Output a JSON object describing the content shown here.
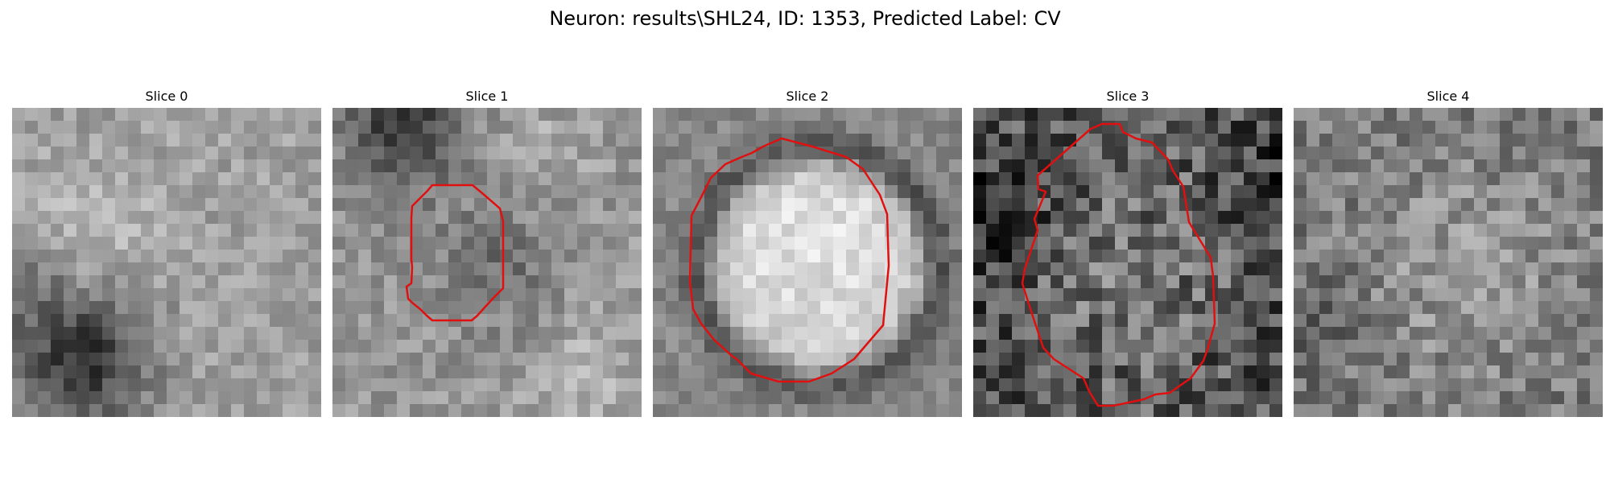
{
  "figure": {
    "title": "Neuron: results\\SHL24, ID: 1353, Predicted Label: CV"
  },
  "colors": {
    "contour": "#e01010",
    "background": "#ffffff",
    "text": "#000000"
  },
  "panels": [
    {
      "title": "Slice 0",
      "has_contour": false
    },
    {
      "title": "Slice 1",
      "has_contour": true
    },
    {
      "title": "Slice 2",
      "has_contour": true
    },
    {
      "title": "Slice 3",
      "has_contour": true
    },
    {
      "title": "Slice 4",
      "has_contour": false
    }
  ]
}
